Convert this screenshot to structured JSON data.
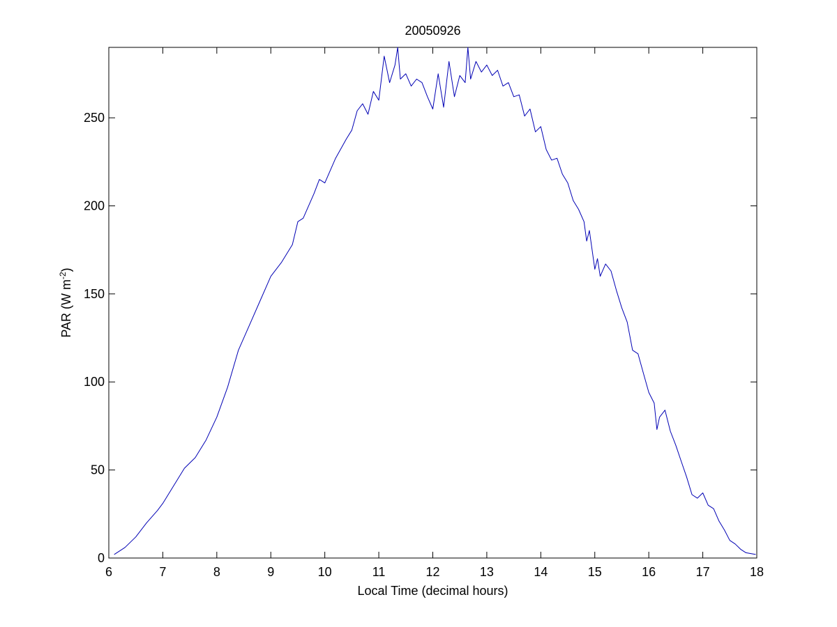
{
  "chart_data": {
    "type": "line",
    "title": "20050926",
    "xlabel": "Local Time (decimal hours)",
    "ylabel": "PAR (W m",
    "ylabel_sup": "-2",
    "ylabel_close": ")",
    "xlim": [
      6,
      18
    ],
    "ylim": [
      0,
      290
    ],
    "xticks": [
      6,
      7,
      8,
      9,
      10,
      11,
      12,
      13,
      14,
      15,
      16,
      17,
      18
    ],
    "yticks": [
      0,
      50,
      100,
      150,
      200,
      250
    ],
    "grid": false,
    "line_color": "#0000b4",
    "series": [
      {
        "x": [
          6.1,
          6.3,
          6.5,
          6.7,
          6.9,
          7.0,
          7.2,
          7.4,
          7.6,
          7.8,
          8.0,
          8.2,
          8.4,
          8.6,
          8.8,
          9.0,
          9.2,
          9.4,
          9.5,
          9.6,
          9.8,
          9.9,
          10.0,
          10.2,
          10.4,
          10.5,
          10.6,
          10.7,
          10.8,
          10.9,
          11.0,
          11.1,
          11.2,
          11.3,
          11.35,
          11.4,
          11.5,
          11.6,
          11.7,
          11.8,
          11.9,
          12.0,
          12.1,
          12.2,
          12.3,
          12.4,
          12.5,
          12.6,
          12.65,
          12.7,
          12.8,
          12.9,
          13.0,
          13.1,
          13.2,
          13.3,
          13.4,
          13.5,
          13.6,
          13.7,
          13.8,
          13.9,
          14.0,
          14.1,
          14.2,
          14.3,
          14.4,
          14.5,
          14.6,
          14.7,
          14.8,
          14.85,
          14.9,
          14.95,
          15.0,
          15.05,
          15.1,
          15.2,
          15.3,
          15.4,
          15.5,
          15.6,
          15.7,
          15.8,
          15.9,
          16.0,
          16.1,
          16.15,
          16.2,
          16.3,
          16.4,
          16.5,
          16.6,
          16.7,
          16.8,
          16.9,
          17.0,
          17.1,
          17.2,
          17.3,
          17.4,
          17.5,
          17.6,
          17.7,
          17.8,
          17.98
        ],
        "y": [
          2,
          6,
          12,
          20,
          27,
          31,
          41,
          51,
          57,
          67,
          80,
          97,
          118,
          132,
          146,
          160,
          168,
          178,
          191,
          193,
          207,
          215,
          213,
          227,
          238,
          243,
          254,
          258,
          252,
          265,
          260,
          285,
          270,
          280,
          290,
          272,
          275,
          268,
          272,
          270,
          262,
          255,
          275,
          256,
          282,
          262,
          274,
          270,
          290,
          272,
          282,
          276,
          280,
          274,
          277,
          268,
          270,
          262,
          263,
          251,
          255,
          242,
          245,
          232,
          226,
          227,
          218,
          213,
          203,
          198,
          191,
          180,
          186,
          175,
          164,
          170,
          160,
          167,
          163,
          152,
          142,
          134,
          118,
          116,
          105,
          94,
          88,
          73,
          80,
          84,
          72,
          64,
          55,
          46,
          36,
          34,
          37,
          30,
          28,
          21,
          16,
          10,
          8,
          5,
          3,
          2
        ]
      }
    ]
  }
}
